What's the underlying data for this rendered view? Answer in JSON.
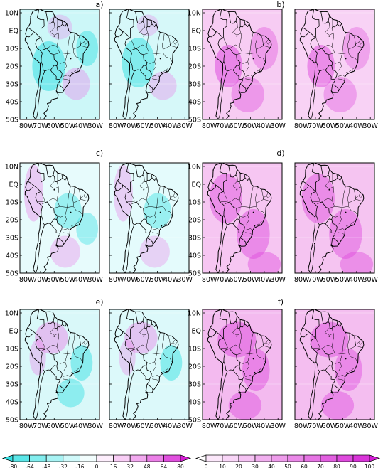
{
  "figure": {
    "panel_labels": [
      "a)",
      "b)",
      "c)",
      "d)",
      "e)",
      "f)"
    ],
    "lat_labels": [
      "10N",
      "EQ",
      "10S",
      "20S",
      "30S",
      "40S",
      "50S"
    ],
    "lon_labels": [
      "80W",
      "70W",
      "60W",
      "50W",
      "40W",
      "30W"
    ]
  },
  "colorbars": {
    "left": {
      "ticks": [
        "-80",
        "-64",
        "-48",
        "-32",
        "-16",
        "0",
        "16",
        "32",
        "48",
        "64",
        "80"
      ],
      "colors": [
        "#35e0e3",
        "#5be6e8",
        "#82edee",
        "#a8f3f4",
        "#d0f9fa",
        "#f2fdfd",
        "#fdeefc",
        "#f8cdf5",
        "#f2a9ef",
        "#eb7fe7",
        "#e04fde",
        "#d61ed5"
      ]
    },
    "right": {
      "ticks": [
        "0",
        "10",
        "20",
        "30",
        "40",
        "50",
        "60",
        "70",
        "80",
        "90",
        "100"
      ],
      "colors": [
        "#ffffff",
        "#fbe7fa",
        "#f8d5f7",
        "#f5c2f3",
        "#f1afef",
        "#ee9ceb",
        "#ea88e8",
        "#e674e4",
        "#e25fe0",
        "#de4add",
        "#d934d9",
        "#d41ed5"
      ]
    }
  },
  "panels": [
    {
      "label_index": 0,
      "row": 0,
      "col": 0,
      "palette": "diverging",
      "bg": "#ccf7f8",
      "blobs": [
        {
          "t": "n",
          "v": -0.5
        },
        {
          "t": "p",
          "v": 0.35
        },
        {
          "t": "p",
          "v": 0.2
        },
        {
          "t": "n",
          "v": -0.35
        }
      ]
    },
    {
      "label_index": -1,
      "row": 0,
      "col": 1,
      "palette": "diverging",
      "bg": "#d6f8f9",
      "blobs": [
        {
          "t": "n",
          "v": -0.45
        },
        {
          "t": "p",
          "v": 0.3
        },
        {
          "t": "p",
          "v": 0.2
        }
      ]
    },
    {
      "label_index": 1,
      "row": 0,
      "col": 2,
      "palette": "sequential",
      "bg": "#f7ccf3",
      "blobs": [
        {
          "t": "p",
          "v": 0.7
        },
        {
          "t": "p",
          "v": 0.45
        },
        {
          "t": "p",
          "v": 0.4
        }
      ]
    },
    {
      "label_index": -1,
      "row": 0,
      "col": 3,
      "palette": "sequential",
      "bg": "#f8d2f5",
      "blobs": [
        {
          "t": "p",
          "v": 0.65
        },
        {
          "t": "p",
          "v": 0.4
        },
        {
          "t": "p",
          "v": 0.35
        }
      ]
    },
    {
      "label_index": 2,
      "row": 1,
      "col": 0,
      "palette": "diverging",
      "bg": "#e7fbfc",
      "blobs": [
        {
          "t": "p",
          "v": 0.35
        },
        {
          "t": "n",
          "v": -0.3
        },
        {
          "t": "p",
          "v": 0.3
        },
        {
          "t": "n",
          "v": -0.25
        }
      ]
    },
    {
      "label_index": -1,
      "row": 1,
      "col": 1,
      "palette": "diverging",
      "bg": "#e4fbfc",
      "blobs": [
        {
          "t": "p",
          "v": 0.3
        },
        {
          "t": "n",
          "v": -0.3
        },
        {
          "t": "p",
          "v": 0.25
        }
      ]
    },
    {
      "label_index": 3,
      "row": 1,
      "col": 2,
      "palette": "sequential",
      "bg": "#f6c6f2",
      "blobs": [
        {
          "t": "p",
          "v": 0.55
        },
        {
          "t": "p",
          "v": 0.6
        },
        {
          "t": "p",
          "v": 0.5
        }
      ]
    },
    {
      "label_index": -1,
      "row": 1,
      "col": 3,
      "palette": "sequential",
      "bg": "#f5c4f1",
      "blobs": [
        {
          "t": "p",
          "v": 0.55
        },
        {
          "t": "p",
          "v": 0.55
        },
        {
          "t": "p",
          "v": 0.5
        }
      ]
    },
    {
      "label_index": 4,
      "row": 2,
      "col": 0,
      "palette": "diverging",
      "bg": "#d9f8f9",
      "blobs": [
        {
          "t": "p",
          "v": 0.5
        },
        {
          "t": "n",
          "v": -0.4
        },
        {
          "t": "p",
          "v": 0.3
        },
        {
          "t": "n",
          "v": -0.35
        }
      ]
    },
    {
      "label_index": -1,
      "row": 2,
      "col": 1,
      "palette": "diverging",
      "bg": "#dcf9fa",
      "blobs": [
        {
          "t": "p",
          "v": 0.45
        },
        {
          "t": "n",
          "v": -0.4
        },
        {
          "t": "p",
          "v": 0.25
        }
      ]
    },
    {
      "label_index": 5,
      "row": 2,
      "col": 2,
      "palette": "sequential",
      "bg": "#f3baef",
      "blobs": [
        {
          "t": "p",
          "v": 0.65
        },
        {
          "t": "p",
          "v": 0.6
        },
        {
          "t": "p",
          "v": 0.55
        }
      ]
    },
    {
      "label_index": -1,
      "row": 2,
      "col": 3,
      "palette": "sequential",
      "bg": "#f4bef0",
      "blobs": [
        {
          "t": "p",
          "v": 0.6
        },
        {
          "t": "p",
          "v": 0.55
        },
        {
          "t": "p",
          "v": 0.55
        }
      ]
    }
  ]
}
